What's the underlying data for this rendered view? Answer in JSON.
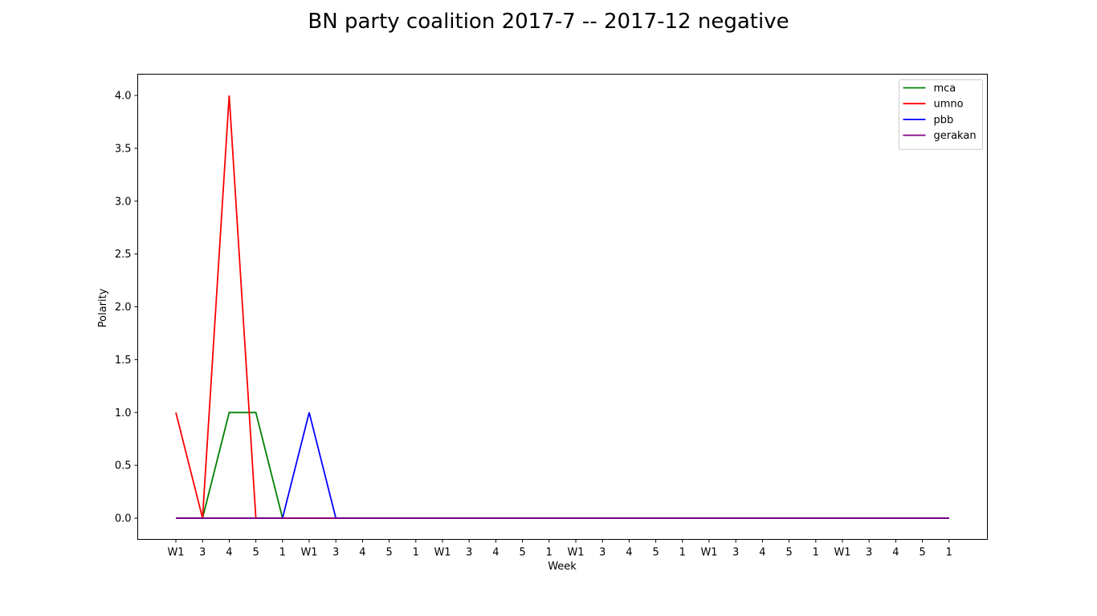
{
  "chart_data": {
    "type": "line",
    "title": "BN party coalition 2017-7 -- 2017-12 negative",
    "xlabel": "Week",
    "ylabel": "Polarity",
    "ylim": [
      -0.18,
      4.2
    ],
    "yticks": [
      "0.0",
      "0.5",
      "1.0",
      "1.5",
      "2.0",
      "2.5",
      "3.0",
      "3.5",
      "4.0"
    ],
    "yticks_values": [
      0,
      0.5,
      1,
      1.5,
      2,
      2.5,
      3,
      3.5,
      4
    ],
    "categories": [
      "W1",
      "3",
      "4",
      "5",
      "1",
      "W1",
      "3",
      "4",
      "5",
      "1",
      "W1",
      "3",
      "4",
      "5",
      "1",
      "W1",
      "3",
      "4",
      "5",
      "1",
      "W1",
      "3",
      "4",
      "5",
      "1",
      "W1",
      "3",
      "4",
      "5",
      "1"
    ],
    "grid": false,
    "legend_position": "top-right",
    "series": [
      {
        "name": "mca",
        "color": "#008000",
        "values": [
          0,
          0,
          1,
          1,
          0,
          0,
          0,
          0,
          0,
          0,
          0,
          0,
          0,
          0,
          0,
          0,
          0,
          0,
          0,
          0,
          0,
          0,
          0,
          0,
          0,
          0,
          0,
          0,
          0,
          0
        ]
      },
      {
        "name": "umno",
        "color": "#ff0000",
        "values": [
          1,
          0,
          4,
          0,
          0,
          0,
          0,
          0,
          0,
          0,
          0,
          0,
          0,
          0,
          0,
          0,
          0,
          0,
          0,
          0,
          0,
          0,
          0,
          0,
          0,
          0,
          0,
          0,
          0,
          0
        ]
      },
      {
        "name": "pbb",
        "color": "#0000ff",
        "values": [
          0,
          0,
          0,
          0,
          0,
          1,
          0,
          0,
          0,
          0,
          0,
          0,
          0,
          0,
          0,
          0,
          0,
          0,
          0,
          0,
          0,
          0,
          0,
          0,
          0,
          0,
          0,
          0,
          0,
          0
        ]
      },
      {
        "name": "gerakan",
        "color": "#800080",
        "values": [
          0,
          0,
          0,
          0,
          0,
          0,
          0,
          0,
          0,
          0,
          0,
          0,
          0,
          0,
          0,
          0,
          0,
          0,
          0,
          0,
          0,
          0,
          0,
          0,
          0,
          0,
          0,
          0,
          0,
          0
        ]
      }
    ]
  }
}
